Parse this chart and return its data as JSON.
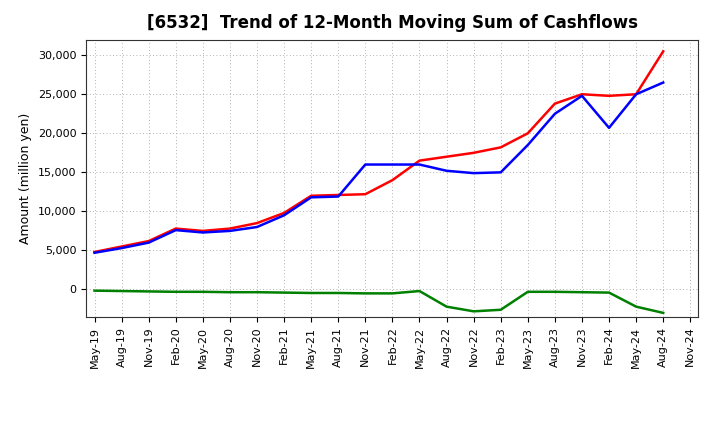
{
  "title": "[6532]  Trend of 12-Month Moving Sum of Cashflows",
  "ylabel": "Amount (million yen)",
  "x_labels": [
    "May-19",
    "Aug-19",
    "Nov-19",
    "Feb-20",
    "May-20",
    "Aug-20",
    "Nov-20",
    "Feb-21",
    "May-21",
    "Aug-21",
    "Nov-21",
    "Feb-22",
    "May-22",
    "Aug-22",
    "Nov-22",
    "Feb-23",
    "May-23",
    "Aug-23",
    "Nov-23",
    "Feb-24",
    "May-24",
    "Aug-24",
    "Nov-24"
  ],
  "operating_cashflow": [
    4800,
    5500,
    6200,
    7800,
    7500,
    7800,
    8500,
    9800,
    12000,
    12100,
    12200,
    14000,
    16500,
    17000,
    17500,
    18200,
    20000,
    23800,
    25000,
    24800,
    25000,
    30500,
    null
  ],
  "investing_cashflow": [
    -150,
    -200,
    -250,
    -300,
    -300,
    -350,
    -350,
    -400,
    -450,
    -450,
    -500,
    -500,
    -200,
    -2200,
    -2800,
    -2600,
    -300,
    -300,
    -350,
    -400,
    -2200,
    -3000,
    null
  ],
  "free_cashflow": [
    4700,
    5300,
    6000,
    7600,
    7300,
    7500,
    8000,
    9500,
    11800,
    11900,
    16000,
    16000,
    16000,
    15200,
    14900,
    15000,
    18500,
    22500,
    24800,
    20700,
    25000,
    26500,
    null
  ],
  "ylim": [
    -3500,
    32000
  ],
  "yticks": [
    0,
    5000,
    10000,
    15000,
    20000,
    25000,
    30000
  ],
  "ytick_labels": [
    "0",
    "5,000",
    "10,000",
    "15,000",
    "20,000",
    "25,000",
    "30,000"
  ],
  "operating_color": "#FF0000",
  "investing_color": "#008000",
  "free_color": "#0000FF",
  "background_color": "#FFFFFF",
  "grid_color": "#999999",
  "title_fontsize": 12,
  "label_fontsize": 9,
  "tick_fontsize": 8,
  "legend_fontsize": 9,
  "linewidth": 1.8
}
